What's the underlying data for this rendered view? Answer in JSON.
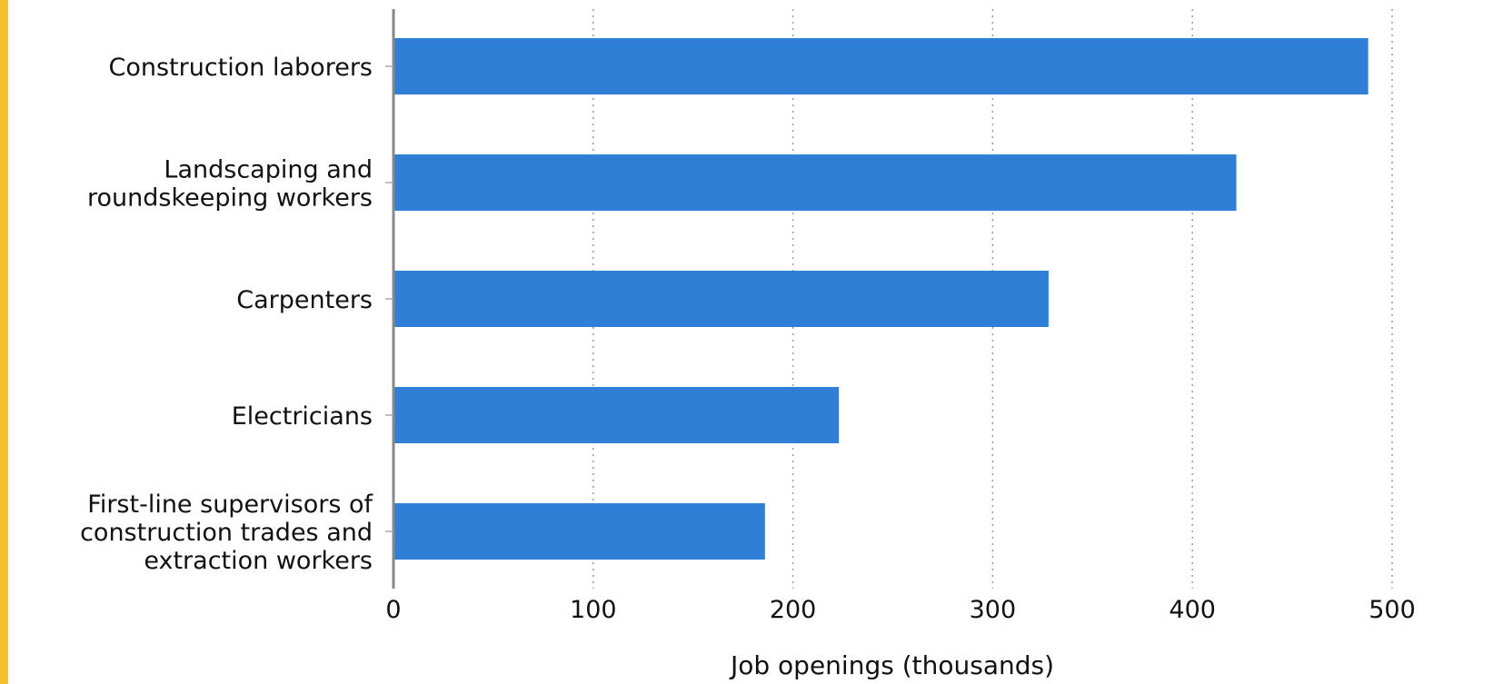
{
  "chart_data": {
    "type": "bar",
    "orientation": "horizontal",
    "categories": [
      [
        "Construction laborers"
      ],
      [
        "Landscaping and",
        "roundskeeping workers"
      ],
      [
        "Carpenters"
      ],
      [
        "Electricians"
      ],
      [
        "First-line supervisors of",
        "construction trades and",
        "extraction workers"
      ]
    ],
    "values": [
      488,
      422,
      328,
      223,
      186
    ],
    "xlabel": "Job openings (thousands)",
    "ylabel": "",
    "xlim": [
      0,
      500
    ],
    "xticks": [
      "0",
      "100",
      "200",
      "300",
      "400",
      "500"
    ],
    "grid": "vertical dotted",
    "bar_color": "#2f7fd7",
    "accent_color": "#f5c22b"
  }
}
